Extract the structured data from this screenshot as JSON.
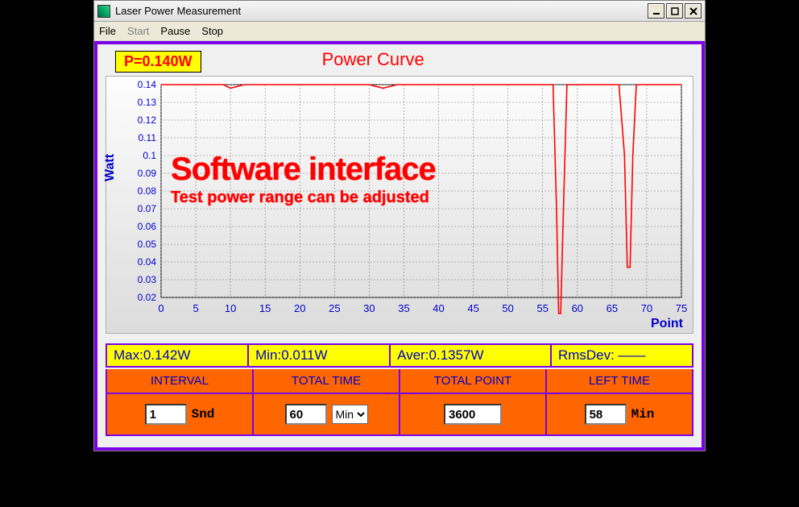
{
  "window": {
    "title": "Laser Power Measurement"
  },
  "menu": {
    "file": "File",
    "start": "Start",
    "pause": "Pause",
    "stop": "Stop"
  },
  "power_badge": "P=0.140W",
  "chart": {
    "title": "Power Curve",
    "ylabel": "Watt",
    "xlabel": "Point",
    "ylim": [
      0.02,
      0.14
    ],
    "yticks": [
      "0.14",
      "0.13",
      "0.12",
      "0.11",
      "0.1",
      "0.09",
      "0.08",
      "0.07",
      "0.06",
      "0.05",
      "0.04",
      "0.03",
      "0.02"
    ],
    "xlim": [
      0,
      75
    ],
    "xticks": [
      "0",
      "5",
      "10",
      "15",
      "20",
      "25",
      "30",
      "35",
      "40",
      "45",
      "50",
      "55",
      "60",
      "65",
      "70",
      "75"
    ],
    "grid_color": "#808080",
    "line_color": "#ff0000",
    "tick_color": "#0000cc",
    "background": "linear-gradient(#fdfdfd,#dcdcdc)",
    "series": [
      [
        0,
        0.14
      ],
      [
        5,
        0.14
      ],
      [
        9,
        0.14
      ],
      [
        10,
        0.138
      ],
      [
        12,
        0.14
      ],
      [
        20,
        0.14
      ],
      [
        30,
        0.14
      ],
      [
        32,
        0.138
      ],
      [
        34,
        0.14
      ],
      [
        40,
        0.14
      ],
      [
        50,
        0.14
      ],
      [
        55,
        0.14
      ],
      [
        56.5,
        0.14
      ],
      [
        57,
        0.07
      ],
      [
        57.3,
        0.011
      ],
      [
        57.6,
        0.011
      ],
      [
        58,
        0.07
      ],
      [
        58.5,
        0.14
      ],
      [
        62,
        0.14
      ],
      [
        64,
        0.14
      ],
      [
        66,
        0.14
      ],
      [
        66.8,
        0.1
      ],
      [
        67.2,
        0.037
      ],
      [
        67.6,
        0.037
      ],
      [
        68,
        0.1
      ],
      [
        68.5,
        0.14
      ],
      [
        72,
        0.14
      ],
      [
        75,
        0.14
      ]
    ]
  },
  "overlay": {
    "title": "Software interface",
    "subtitle": "Test power range can be adjusted"
  },
  "stats": {
    "max": "Max:0.142W",
    "min": "Min:0.011W",
    "aver": "Aver:0.1357W",
    "rmsdev": "RmsDev: ——"
  },
  "controls": {
    "interval": {
      "label": "INTERVAL",
      "value": "1",
      "unit": "Snd"
    },
    "total_time": {
      "label": "TOTAL TIME",
      "value": "60",
      "unit": "Min"
    },
    "total_point": {
      "label": "TOTAL POINT",
      "value": "3600"
    },
    "left_time": {
      "label": "LEFT TIME",
      "value": "58",
      "unit": "Min"
    }
  },
  "colors": {
    "accent_purple": "#7a00e6",
    "yellow": "#ffff00",
    "orange": "#ff6600",
    "red": "#ff0000",
    "blue": "#0000cc"
  }
}
